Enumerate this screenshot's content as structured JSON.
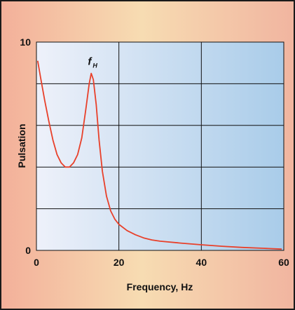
{
  "chart_data": {
    "type": "line",
    "title": "",
    "xlabel": "Frequency, Hz",
    "ylabel": "Pulsation",
    "xlim": [
      0,
      60
    ],
    "ylim": [
      0,
      10
    ],
    "x_ticks": [
      "0",
      "20",
      "40",
      "60"
    ],
    "y_ticks": [
      "0",
      "10"
    ],
    "grid": true,
    "annotation": {
      "text": "f",
      "subscript": "H",
      "x": 13.5,
      "y": 8.9
    },
    "series": [
      {
        "color": "#e8402a",
        "points": [
          [
            0.3,
            9.1
          ],
          [
            1,
            8.3
          ],
          [
            2,
            7.2
          ],
          [
            3,
            6.2
          ],
          [
            4,
            5.3
          ],
          [
            5,
            4.6
          ],
          [
            6,
            4.2
          ],
          [
            7,
            4.0
          ],
          [
            8,
            4.0
          ],
          [
            9,
            4.2
          ],
          [
            10,
            4.6
          ],
          [
            11,
            5.4
          ],
          [
            12,
            6.8
          ],
          [
            12.8,
            8.0
          ],
          [
            13.3,
            8.5
          ],
          [
            13.8,
            8.2
          ],
          [
            14.5,
            7.0
          ],
          [
            15.2,
            5.3
          ],
          [
            16,
            3.8
          ],
          [
            17,
            2.6
          ],
          [
            18,
            1.9
          ],
          [
            19,
            1.5
          ],
          [
            20,
            1.25
          ],
          [
            22,
            0.95
          ],
          [
            24,
            0.75
          ],
          [
            26,
            0.6
          ],
          [
            28,
            0.5
          ],
          [
            30,
            0.44
          ],
          [
            35,
            0.35
          ],
          [
            40,
            0.27
          ],
          [
            45,
            0.2
          ],
          [
            50,
            0.14
          ],
          [
            55,
            0.1
          ],
          [
            59.5,
            0.06
          ]
        ]
      }
    ]
  },
  "colors": {
    "plot_bg_left": "#eef1fa",
    "plot_bg_right": "#a9cce9",
    "grid": "#111111",
    "line": "#e8402a"
  }
}
